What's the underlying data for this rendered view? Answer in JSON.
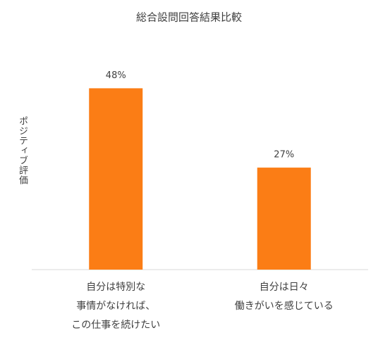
{
  "chart_data": {
    "type": "bar",
    "title": "総合設問回答結果比較",
    "y_label": "ポジティブ評価",
    "categories": [
      "自分は特別な\n事情がなければ、\nこの仕事を続けたい",
      "自分は日々\n働きがいを感じている"
    ],
    "values": [
      48,
      27
    ],
    "value_labels": [
      "48%",
      "27%"
    ],
    "color": "#fb7d15",
    "ylim": [
      0,
      60
    ],
    "grid": false
  }
}
